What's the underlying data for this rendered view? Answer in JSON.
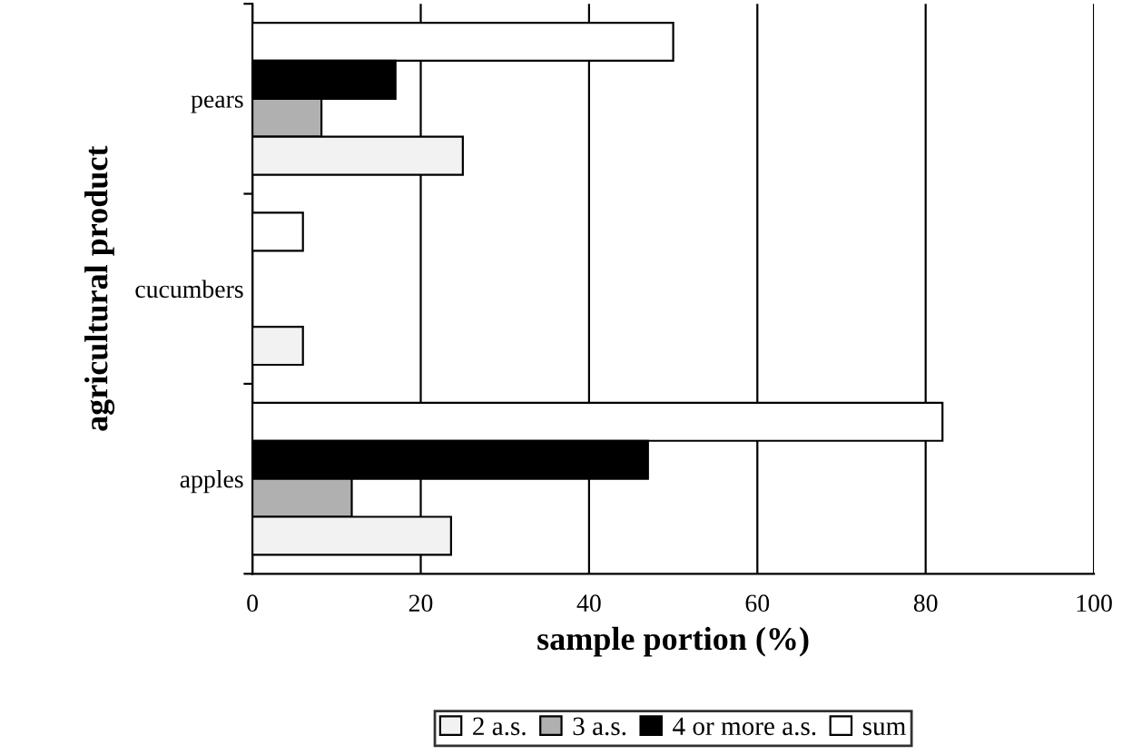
{
  "chart_data": {
    "type": "bar",
    "orientation": "horizontal",
    "xlabel": "sample portion (%)",
    "ylabel": "agricultural product",
    "categories": [
      "pears",
      "cucumbers",
      "apples"
    ],
    "series": [
      {
        "name": "sum",
        "color": "#ffffff",
        "values": [
          50,
          6,
          82
        ]
      },
      {
        "name": "4 or more a.s.",
        "color": "#000000",
        "values": [
          17,
          null,
          47
        ]
      },
      {
        "name": "3 a.s.",
        "color": "#b0b0b0",
        "values": [
          8.2,
          null,
          11.8
        ]
      },
      {
        "name": "2 a.s.",
        "color": "#f2f2f2",
        "values": [
          25,
          6,
          23.6
        ]
      }
    ],
    "xlim": [
      0,
      100
    ],
    "xticks": [
      0,
      20,
      40,
      60,
      80,
      100
    ],
    "grid": "x",
    "legend": "bottom"
  }
}
